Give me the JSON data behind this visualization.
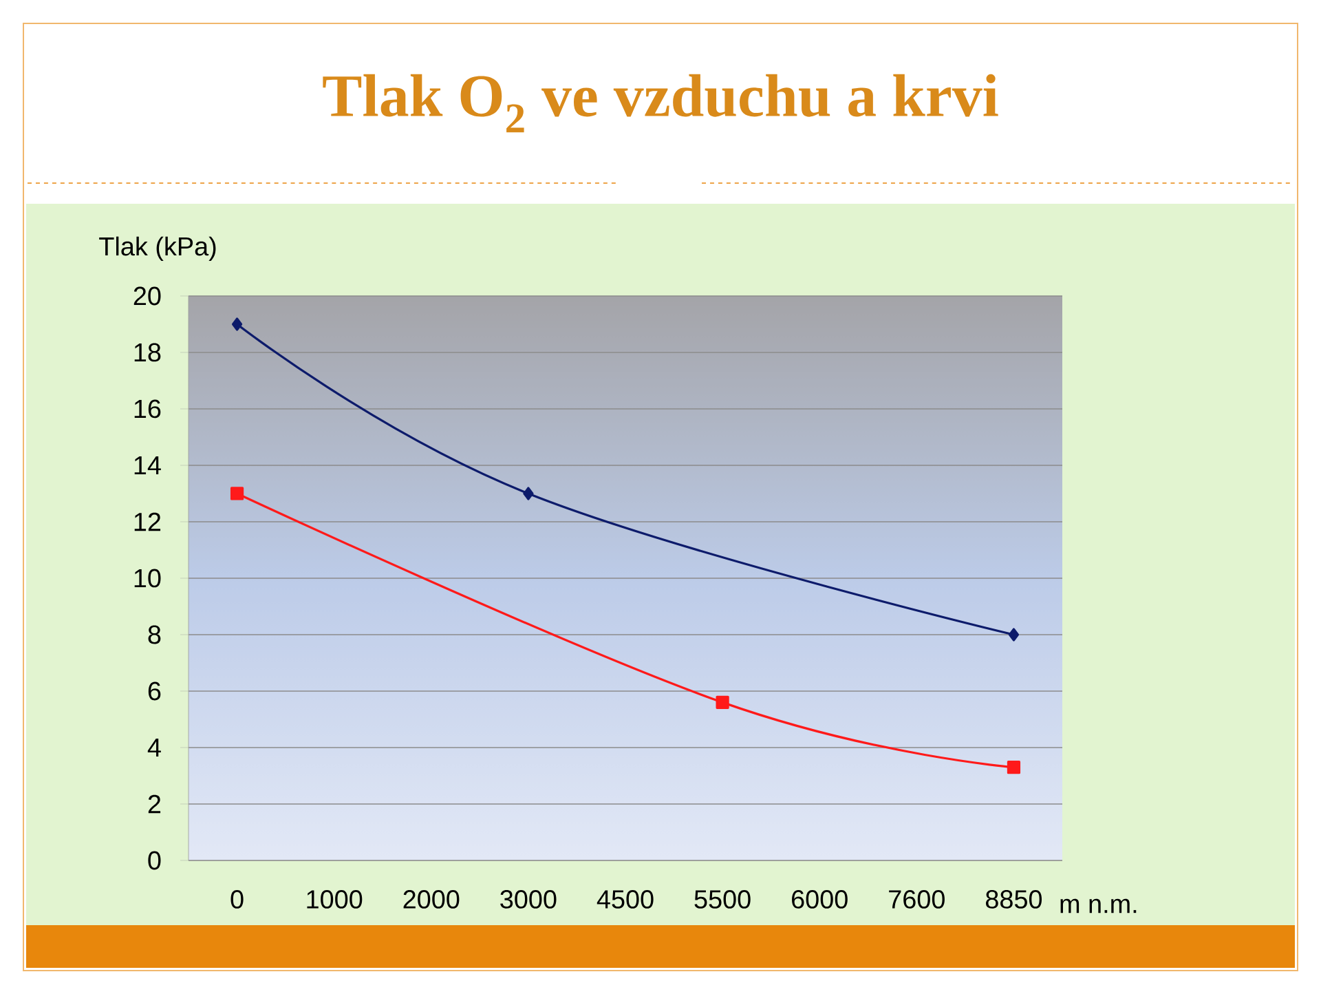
{
  "chart_data": {
    "type": "line",
    "title": "Tlak O$_{2}$ ve vzduchu a krvi",
    "ylabel": "Tlak (kPa)",
    "xlabel": "m n.m.",
    "categories": [
      "0",
      "1000",
      "2000",
      "3000",
      "4500",
      "5500",
      "6000",
      "7600",
      "8850"
    ],
    "series": [
      {
        "color": "#0d1b6b",
        "marker": "diamond",
        "values": [
          19,
          null,
          null,
          13,
          null,
          null,
          null,
          null,
          8
        ]
      },
      {
        "color": "#ff1a1a",
        "marker": "square",
        "values": [
          13,
          null,
          null,
          null,
          null,
          5.6,
          null,
          null,
          3.3
        ]
      }
    ],
    "ylim": [
      0,
      20
    ],
    "yticks": [
      0,
      2,
      4,
      6,
      8,
      10,
      12,
      14,
      16,
      18,
      20
    ],
    "grid": "y",
    "line_style": "solid"
  }
}
